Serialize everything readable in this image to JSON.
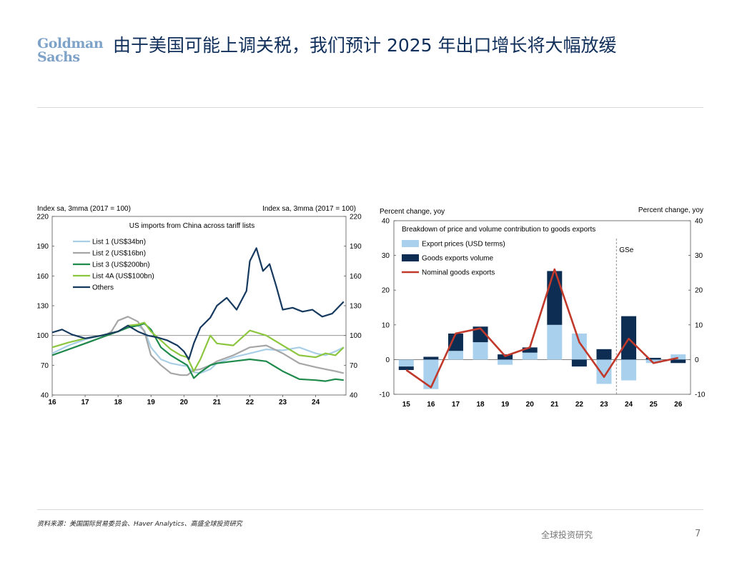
{
  "header": {
    "logo_line1": "Goldman",
    "logo_line2": "Sachs",
    "title": "由于美国可能上调关税，我们预计 2025 年出口增长将大幅放缓"
  },
  "footer": {
    "source": "资料来源：美国国际贸易委员会、Haver Analytics、高盛全球投资研究",
    "label": "全球投资研究",
    "page": "7"
  },
  "chart_data": [
    {
      "type": "line",
      "title": "US imports from China across tariff lists",
      "ylabel_left": "Index sa, 3mma (2017 = 100)",
      "ylabel_right": "Index sa, 3mma (2017 = 100)",
      "ylim": [
        40,
        220
      ],
      "yticks": [
        40,
        70,
        100,
        130,
        160,
        190,
        220
      ],
      "xlim": [
        2016,
        2024.92
      ],
      "xticks": [
        "16",
        "17",
        "18",
        "19",
        "20",
        "21",
        "22",
        "23",
        "24"
      ],
      "reference_line": 100,
      "legend_position": "top-left",
      "series": [
        {
          "name": "List 1 (US$34bn)",
          "color": "#a9cfe6",
          "x": [
            2016,
            2016.5,
            2017,
            2017.5,
            2018,
            2018.3,
            2018.6,
            2018.8,
            2019,
            2019.3,
            2019.6,
            2019.9,
            2020.1,
            2020.3,
            2020.5,
            2020.8,
            2021,
            2021.5,
            2022,
            2022.5,
            2023,
            2023.5,
            2024,
            2024.3,
            2024.6,
            2024.85
          ],
          "y": [
            82,
            90,
            96,
            100,
            104,
            108,
            110,
            105,
            88,
            76,
            72,
            70,
            69,
            63,
            62,
            66,
            72,
            78,
            82,
            86,
            85,
            88,
            82,
            80,
            84,
            88
          ]
        },
        {
          "name": "List 2 (US$16bn)",
          "color": "#a6a6a6",
          "x": [
            2016,
            2016.5,
            2017,
            2017.5,
            2017.8,
            2018,
            2018.3,
            2018.6,
            2018.8,
            2019,
            2019.3,
            2019.6,
            2019.9,
            2020.1,
            2020.3,
            2020.5,
            2020.8,
            2021,
            2021.5,
            2022,
            2022.5,
            2023,
            2023.5,
            2024,
            2024.3,
            2024.6,
            2024.85
          ],
          "y": [
            80,
            86,
            92,
            98,
            104,
            115,
            119,
            114,
            104,
            80,
            70,
            62,
            60,
            60,
            65,
            66,
            70,
            74,
            80,
            88,
            90,
            82,
            72,
            68,
            66,
            64,
            62
          ]
        },
        {
          "name": "List 3 (US$200bn)",
          "color": "#1e8a4b",
          "x": [
            2016,
            2016.5,
            2017,
            2017.5,
            2018,
            2018.3,
            2018.6,
            2018.8,
            2019,
            2019.3,
            2019.6,
            2019.9,
            2020.1,
            2020.3,
            2020.5,
            2020.8,
            2021,
            2021.5,
            2022,
            2022.5,
            2023,
            2023.5,
            2024,
            2024.3,
            2024.6,
            2024.85
          ],
          "y": [
            80,
            86,
            92,
            98,
            104,
            108,
            110,
            112,
            106,
            88,
            80,
            74,
            70,
            57,
            63,
            70,
            72,
            74,
            76,
            74,
            64,
            56,
            55,
            54,
            56,
            55
          ]
        },
        {
          "name": "List 4A (US$100bn)",
          "color": "#8cc63f",
          "x": [
            2016,
            2016.5,
            2017,
            2017.5,
            2018,
            2018.3,
            2018.6,
            2018.8,
            2019,
            2019.3,
            2019.6,
            2019.9,
            2020.1,
            2020.3,
            2020.5,
            2020.8,
            2021,
            2021.5,
            2022,
            2022.5,
            2023,
            2023.5,
            2024,
            2024.3,
            2024.6,
            2024.85
          ],
          "y": [
            88,
            93,
            97,
            100,
            104,
            110,
            111,
            113,
            104,
            95,
            86,
            80,
            78,
            64,
            76,
            100,
            92,
            90,
            105,
            100,
            90,
            80,
            78,
            82,
            80,
            88
          ]
        },
        {
          "name": "Others",
          "color": "#163a5f",
          "x": [
            2016,
            2016.3,
            2016.6,
            2017,
            2017.5,
            2018,
            2018.3,
            2018.6,
            2018.9,
            2019.2,
            2019.5,
            2019.8,
            2020,
            2020.15,
            2020.3,
            2020.5,
            2020.8,
            2021,
            2021.3,
            2021.6,
            2021.9,
            2022,
            2022.2,
            2022.4,
            2022.6,
            2022.8,
            2023,
            2023.3,
            2023.6,
            2023.9,
            2024.2,
            2024.5,
            2024.85
          ],
          "y": [
            103,
            106,
            101,
            97,
            100,
            104,
            110,
            104,
            100,
            98,
            95,
            90,
            84,
            76,
            92,
            108,
            118,
            130,
            138,
            126,
            145,
            175,
            188,
            165,
            172,
            150,
            126,
            128,
            124,
            126,
            119,
            122,
            134
          ]
        }
      ]
    },
    {
      "type": "bar",
      "title": "Breakdown of price and volume contribution to goods exports",
      "ylabel_left": "Percent change, yoy",
      "ylabel_right": "Percent change, yoy",
      "ylim": [
        -10,
        40
      ],
      "yticks": [
        -10,
        0,
        10,
        20,
        30,
        40
      ],
      "categories": [
        "15",
        "16",
        "17",
        "18",
        "19",
        "20",
        "21",
        "22",
        "23",
        "24",
        "25",
        "26"
      ],
      "forecast_label": "GSe",
      "forecast_from": "24",
      "legend_position": "top-left",
      "series": [
        {
          "name": "Export prices (USD terms)",
          "kind": "bar",
          "color": "#a9d1ee",
          "values": [
            -2,
            -8.5,
            2.5,
            5,
            -1.5,
            2,
            10,
            7.5,
            -7,
            -6,
            -1,
            1.5
          ]
        },
        {
          "name": "Goods exports volume",
          "kind": "bar",
          "color": "#0d2d52",
          "values": [
            -1,
            0.8,
            5,
            4.5,
            1.5,
            1.5,
            15.5,
            -2,
            3,
            12.5,
            0.5,
            -1
          ]
        },
        {
          "name": "Nominal goods exports",
          "kind": "line",
          "color": "#c0392b",
          "values": [
            -3,
            -8,
            7.5,
            9,
            1,
            3.5,
            26,
            5,
            -5,
            6,
            -1,
            0.5
          ]
        }
      ]
    }
  ]
}
